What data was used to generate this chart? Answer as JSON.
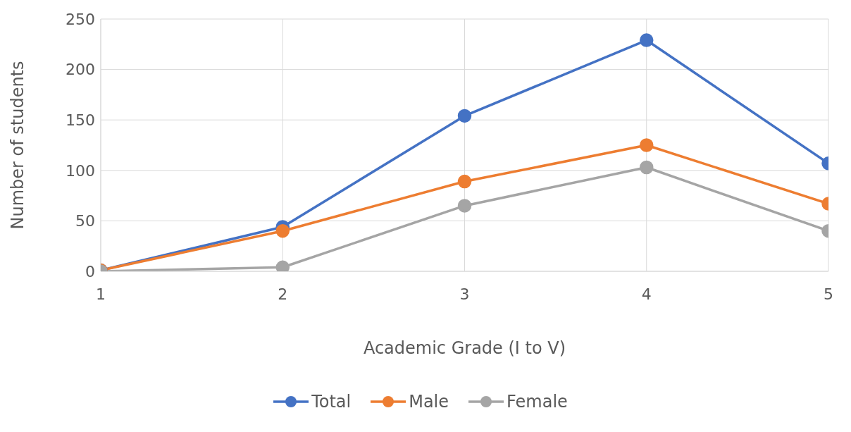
{
  "chart_data": {
    "type": "line",
    "xlabel": "Academic Grade (I to V)",
    "ylabel": "Number of students",
    "x": [
      1,
      2,
      3,
      4,
      5
    ],
    "series": [
      {
        "name": "Total",
        "color": "#4472c4",
        "values": [
          1,
          44,
          154,
          229,
          107
        ]
      },
      {
        "name": "Male",
        "color": "#ed7d31",
        "values": [
          1,
          40,
          89,
          125,
          67
        ]
      },
      {
        "name": "Female",
        "color": "#a5a5a5",
        "values": [
          0,
          4,
          65,
          103,
          40
        ]
      }
    ],
    "xlim": [
      1,
      5
    ],
    "xticks": [
      1,
      2,
      3,
      4,
      5
    ],
    "ylim": [
      0,
      250
    ],
    "yticks": [
      0,
      50,
      100,
      150,
      200,
      250
    ],
    "grid": true,
    "legend": "bottom",
    "marker": "circle",
    "line_style": "solid"
  }
}
